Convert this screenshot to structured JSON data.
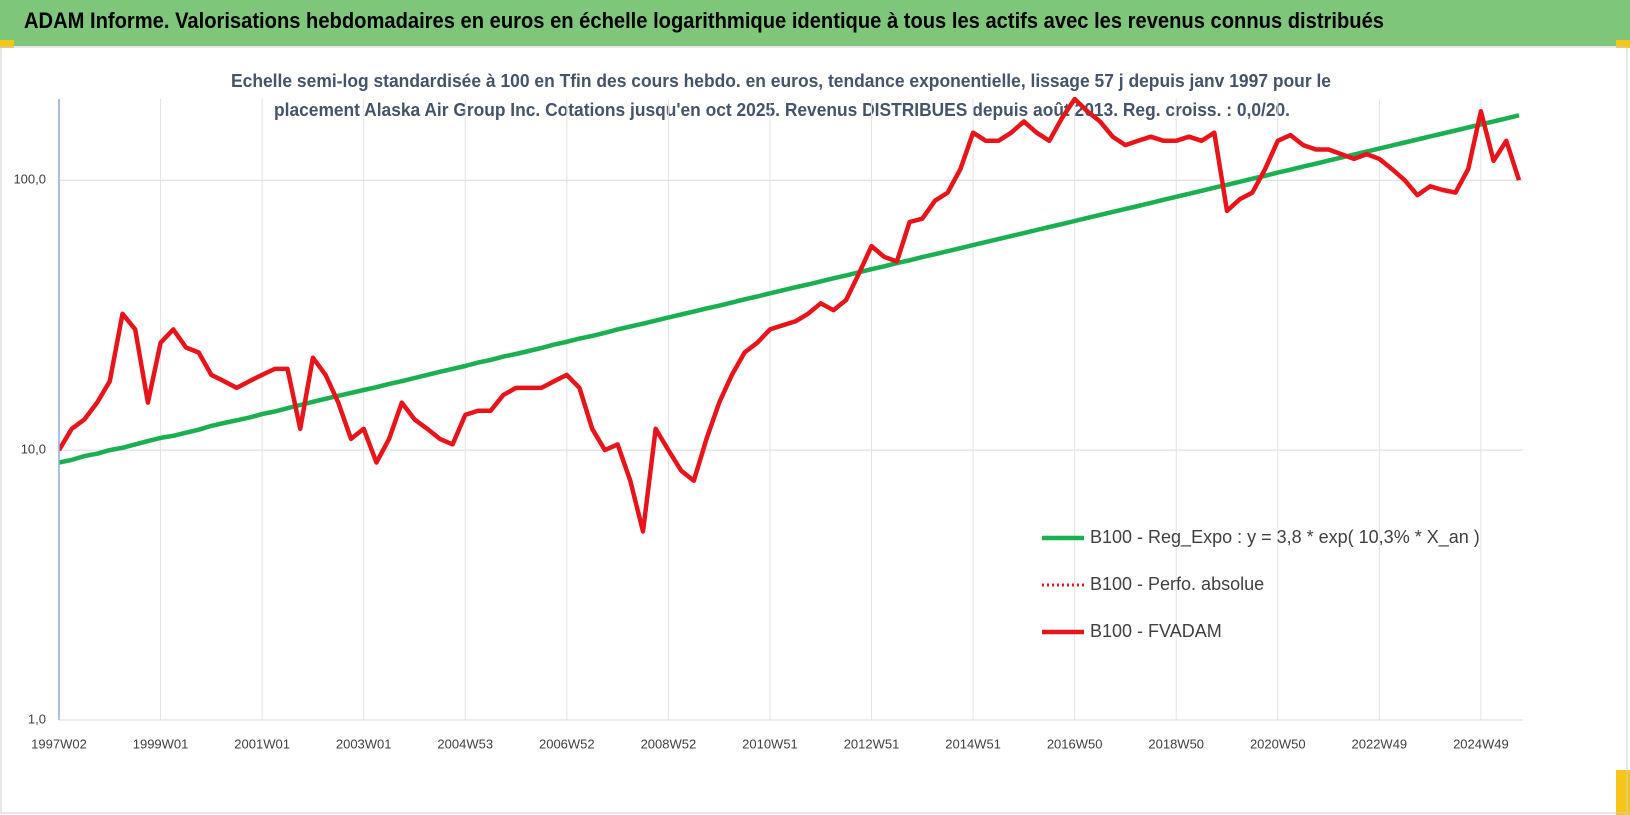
{
  "chart_data": {
    "type": "line",
    "title": "ADAM Informe. Valorisations hebdomadaires en euros en échelle logarithmique identique à tous les actifs avec les revenus connus distribués",
    "subtitle": [
      "Echelle semi-log standardisée à 100 en Tfin des cours hebdo. en euros, tendance exponentielle, lissage 57 j depuis janv 1997 pour le",
      "placement Alaska Air Group Inc. Cotations jusqu'en oct 2025. Revenus DISTRIBUES depuis août 2013. Reg. croiss. : 0,0/20."
    ],
    "log_scale_y": true,
    "grid": true,
    "ylim": [
      1,
      200
    ],
    "yticks": [
      {
        "value": 1,
        "label": "1,0"
      },
      {
        "value": 10,
        "label": "10,0"
      },
      {
        "value": 100,
        "label": "100,0"
      }
    ],
    "categories": [
      "1997W02",
      null,
      null,
      null,
      null,
      null,
      null,
      null,
      "1999W01",
      null,
      null,
      null,
      null,
      null,
      null,
      null,
      "2001W01",
      null,
      null,
      null,
      null,
      null,
      null,
      null,
      "2003W01",
      null,
      null,
      null,
      null,
      null,
      null,
      null,
      "2004W53",
      null,
      null,
      null,
      null,
      null,
      null,
      null,
      "2006W52",
      null,
      null,
      null,
      null,
      null,
      null,
      null,
      "2008W52",
      null,
      null,
      null,
      null,
      null,
      null,
      null,
      "2010W51",
      null,
      null,
      null,
      null,
      null,
      null,
      null,
      "2012W51",
      null,
      null,
      null,
      null,
      null,
      null,
      null,
      "2014W51",
      null,
      null,
      null,
      null,
      null,
      null,
      null,
      "2016W50",
      null,
      null,
      null,
      null,
      null,
      null,
      null,
      "2018W50",
      null,
      null,
      null,
      null,
      null,
      null,
      null,
      "2020W50",
      null,
      null,
      null,
      null,
      null,
      null,
      null,
      "2022W49",
      null,
      null,
      null,
      null,
      null,
      null,
      null,
      "2024W49",
      null,
      null,
      null
    ],
    "legend": "right",
    "series": [
      {
        "name": "B100 - Reg_Expo : y = 3,8 * exp( 10,3% *  X_an )",
        "color": "#1aaf50",
        "dash": "solid",
        "values": [
          9.0,
          9.2,
          9.5,
          9.7,
          10.0,
          10.2,
          10.5,
          10.8,
          11.1,
          11.3,
          11.6,
          11.9,
          12.3,
          12.6,
          12.9,
          13.2,
          13.6,
          13.9,
          14.3,
          14.7,
          15.1,
          15.5,
          15.9,
          16.3,
          16.7,
          17.1,
          17.6,
          18.0,
          18.5,
          19.0,
          19.5,
          20.0,
          20.5,
          21.1,
          21.6,
          22.2,
          22.7,
          23.3,
          23.9,
          24.6,
          25.2,
          25.9,
          26.5,
          27.2,
          28.0,
          28.7,
          29.4,
          30.2,
          31.0,
          31.8,
          32.6,
          33.5,
          34.3,
          35.2,
          36.2,
          37.1,
          38.1,
          39.1,
          40.1,
          41.1,
          42.2,
          43.3,
          44.4,
          45.6,
          46.8,
          48.0,
          49.3,
          50.5,
          51.9,
          53.2,
          54.6,
          56.0,
          57.5,
          59.0,
          60.5,
          62.1,
          63.7,
          65.4,
          67.1,
          68.8,
          70.6,
          72.5,
          74.4,
          76.3,
          78.3,
          80.3,
          82.4,
          84.6,
          86.8,
          89.1,
          91.4,
          93.8,
          96.2,
          98.7,
          101.3,
          103.9,
          106.7,
          109.4,
          112.3,
          115.2,
          118.2,
          121.3,
          124.5,
          127.7,
          131.0,
          134.5,
          138.0,
          141.6,
          145.3,
          149.0,
          152.9,
          156.9,
          161.0,
          165.2,
          169.5,
          174.0
        ]
      },
      {
        "name": "B100 - Perfo. absolue",
        "color": "#e8141a",
        "dash": "dotted"
      },
      {
        "name": "B100 - FVADAM",
        "color": "#e8141a",
        "dash": "solid",
        "values": [
          10,
          12,
          13,
          15,
          18,
          32,
          28,
          15,
          25,
          28,
          24,
          23,
          19,
          18,
          17,
          18,
          19,
          20,
          20,
          12,
          22,
          19,
          15,
          11,
          12,
          9,
          11,
          15,
          13,
          12,
          11,
          10.5,
          13.5,
          14,
          14,
          16,
          17,
          17,
          17,
          18,
          19,
          17,
          12,
          10,
          10.5,
          7.7,
          5,
          12,
          10,
          8.4,
          7.7,
          11,
          15,
          19,
          23,
          25,
          28,
          29,
          30,
          32,
          35,
          33,
          36,
          45,
          57,
          52,
          50,
          70,
          72,
          84,
          90,
          110,
          150,
          140,
          140,
          150,
          165,
          150,
          140,
          170,
          200,
          180,
          165,
          145,
          135,
          140,
          145,
          140,
          140,
          145,
          140,
          150,
          77,
          85,
          90,
          110,
          140,
          147,
          135,
          130,
          130,
          125,
          120,
          125,
          120,
          110,
          100,
          88,
          95,
          92,
          90,
          110,
          180,
          118,
          140,
          100
        ]
      }
    ]
  }
}
